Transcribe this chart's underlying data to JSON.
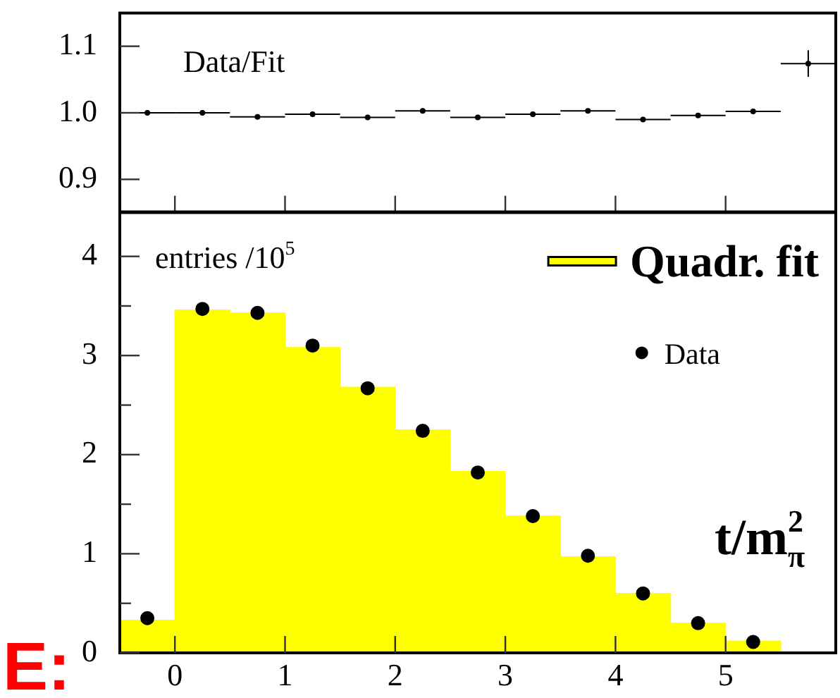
{
  "chart_data": [
    {
      "type": "scatter",
      "ylabel": "Data/Fit",
      "x": [
        -0.25,
        0.25,
        0.75,
        1.25,
        1.75,
        2.25,
        2.75,
        3.25,
        3.75,
        4.25,
        4.75,
        5.25,
        5.75
      ],
      "series": [
        {
          "color": "#000000",
          "values": [
            1.0,
            1.0,
            0.994,
            0.998,
            0.993,
            1.003,
            0.993,
            0.998,
            1.003,
            0.99,
            0.996,
            1.002,
            1.074
          ],
          "xerrors": [
            0.25,
            0.25,
            0.25,
            0.25,
            0.25,
            0.25,
            0.25,
            0.25,
            0.25,
            0.25,
            0.25,
            0.25,
            0.25
          ],
          "errors": [
            null,
            null,
            null,
            null,
            null,
            null,
            null,
            null,
            null,
            null,
            null,
            null,
            0.02
          ]
        }
      ],
      "xlim": [
        -0.5,
        6
      ],
      "xticks": [
        0,
        1,
        2,
        3,
        4,
        5
      ],
      "ylim": [
        0.85,
        1.15
      ],
      "yticks": [
        {
          "value": 0.9,
          "label": "0.9"
        },
        {
          "value": 1,
          "label": "1.0"
        },
        {
          "value": 1.1,
          "label": "1.1"
        }
      ],
      "tick_labels": "y"
    },
    {
      "type": "histogram",
      "xlabel": "t/m$_{π}$$^{2}$",
      "ylabel": "entries /10$^{5}$",
      "annotations": [
        "E:"
      ],
      "bins": [
        -0.5,
        0,
        0.5,
        1,
        1.5,
        2,
        2.5,
        3,
        3.5,
        4,
        4.5,
        5,
        5.5,
        6
      ],
      "series": [
        {
          "name": "Quadr. fit",
          "type": "histogram",
          "color": "#ffff00",
          "values": [
            0.33,
            3.46,
            3.43,
            3.08,
            2.68,
            2.25,
            1.83,
            1.38,
            0.97,
            0.6,
            0.3,
            0.12,
            0
          ]
        },
        {
          "name": "Data",
          "type": "scatter",
          "color": "#000000",
          "x": [
            -0.25,
            0.25,
            0.75,
            1.25,
            1.75,
            2.25,
            2.75,
            3.25,
            3.75,
            4.25,
            4.75,
            5.25
          ],
          "values": [
            0.35,
            3.47,
            3.43,
            3.1,
            2.67,
            2.24,
            1.82,
            1.38,
            0.98,
            0.6,
            0.3,
            0.11
          ]
        }
      ],
      "marker": "circle",
      "legend": "top right",
      "xlim": [
        -0.5,
        6
      ],
      "xticks": [
        0,
        1,
        2,
        3,
        4,
        5
      ],
      "ylim": [
        0,
        4.45
      ],
      "yticks": [
        0,
        {
          "value": 0.5,
          "label": null
        },
        1,
        {
          "value": 1.5,
          "label": null
        },
        2,
        {
          "value": 2.5,
          "label": null
        },
        3,
        {
          "value": 3.5,
          "label": null
        },
        4
      ]
    }
  ]
}
